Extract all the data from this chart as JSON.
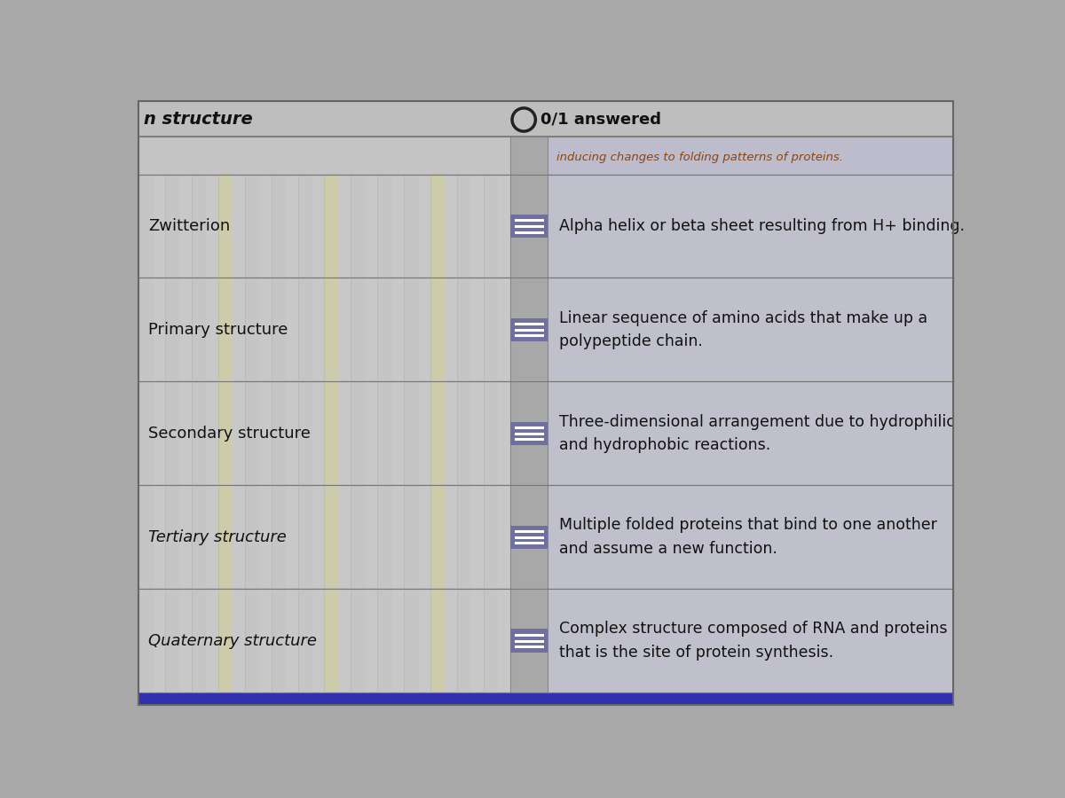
{
  "bg_color": "#a8a8a8",
  "outer_border_color": "#888888",
  "header_bg": "#c0c0c0",
  "left_box_bg": "#c8c8c8",
  "right_box_bg": "#c0c0ce",
  "connector_bg": "#7070a0",
  "row_border_color": "#888888",
  "title_partial": "n structure",
  "header_answered": "0/1 answered",
  "top_right_text": "inducing changes to folding patterns of proteins.",
  "rows": [
    {
      "left_label": "Zwitterion",
      "right_text": "Alpha helix or beta sheet resulting from H+ binding.",
      "left_italic": false
    },
    {
      "left_label": "Primary structure",
      "right_text": "Linear sequence of amino acids that make up a\npolypeptide chain.",
      "left_italic": false
    },
    {
      "left_label": "Secondary structure",
      "right_text": "Three-dimensional arrangement due to hydrophilic\nand hydrophobic reactions.",
      "left_italic": false
    },
    {
      "left_label": "Tertiary structure",
      "right_text": "Multiple folded proteins that bind to one another\nand assume a new function.",
      "left_italic": true
    },
    {
      "left_label": "Quaternary structure",
      "right_text": "Complex structure composed of RNA and proteins\nthat is the site of protein synthesis.",
      "left_italic": true
    }
  ],
  "bottom_bar_color": "#3030b0",
  "figsize": [
    12,
    9
  ],
  "dpi": 100
}
